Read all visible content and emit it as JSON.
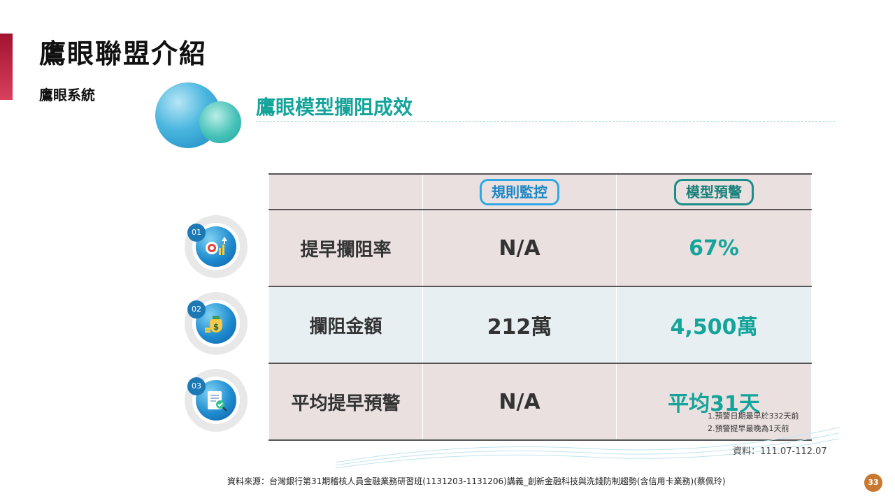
{
  "header": {
    "title": "鷹眼聯盟介紹",
    "subtitle": "鷹眼系統"
  },
  "section": {
    "heading": "鷹眼模型攔阻成效"
  },
  "table": {
    "columns": [
      "規則監控",
      "模型預警"
    ],
    "rows": [
      {
        "badge": "01",
        "icon": "target-growth-icon",
        "label": "提早攔阻率",
        "rule": "N/A",
        "model": "67%"
      },
      {
        "badge": "02",
        "icon": "money-bag-icon",
        "label": "攔阻金額",
        "rule": "212萬",
        "model": "4,500萬"
      },
      {
        "badge": "03",
        "icon": "document-check-icon",
        "label": "平均提早預警",
        "rule": "N/A",
        "model": "平均31天"
      }
    ],
    "notes": [
      "1.預警日期最早於332天前",
      "2.預警提早最晚為1天前"
    ]
  },
  "source_range": "資料：111.07-112.07",
  "footer": {
    "source": "資料來源：台灣銀行第31期稽核人員金融業務研習班(1131203-1131206)講義_創新金融科技與洗錢防制趨勢(含信用卡業務)(蔡佩玲)",
    "page_number": "33"
  },
  "colors": {
    "accent": "#b01c3a",
    "teal": "#14a49a",
    "blue": "#1986c5",
    "page_badge": "#c77a2f"
  }
}
